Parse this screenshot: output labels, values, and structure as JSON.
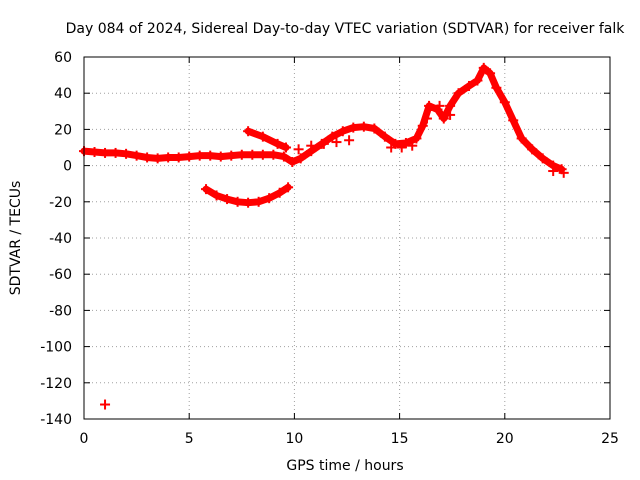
{
  "chart_data": {
    "type": "scatter",
    "title": "Day 084 of 2024, Sidereal Day-to-day VTEC variation (SDTVAR) for receiver falk",
    "xlabel": "GPS time / hours",
    "ylabel": "SDTVAR / TECUs",
    "xlim": [
      0,
      25
    ],
    "ylim": [
      -140,
      60
    ],
    "x_ticks": [
      0,
      5,
      10,
      15,
      20,
      25
    ],
    "y_ticks": [
      -140,
      -120,
      -100,
      -80,
      -60,
      -40,
      -20,
      0,
      20,
      40,
      60
    ],
    "grid": true,
    "colors": {
      "series": "#ff0000",
      "grid": "#a0a0a0",
      "axis": "#000000"
    },
    "series": [
      {
        "name": "main arc",
        "points": [
          [
            0.0,
            8
          ],
          [
            0.5,
            7.5
          ],
          [
            1.0,
            7
          ],
          [
            1.5,
            7
          ],
          [
            2.0,
            6.5
          ],
          [
            2.5,
            5.5
          ],
          [
            3.0,
            4.5
          ],
          [
            3.5,
            4
          ],
          [
            4.0,
            4.5
          ],
          [
            4.5,
            4.5
          ],
          [
            5.0,
            5
          ],
          [
            5.5,
            5.5
          ],
          [
            6.0,
            5.5
          ],
          [
            6.5,
            5
          ],
          [
            7.0,
            5.5
          ],
          [
            7.5,
            6
          ],
          [
            8.0,
            6
          ],
          [
            8.5,
            6
          ],
          [
            9.0,
            6
          ],
          [
            9.5,
            5
          ],
          [
            9.9,
            2
          ],
          [
            10.3,
            4
          ],
          [
            10.8,
            8
          ],
          [
            11.3,
            12
          ],
          [
            11.8,
            16
          ],
          [
            12.3,
            19
          ],
          [
            12.8,
            21
          ],
          [
            13.3,
            21.5
          ],
          [
            13.8,
            20.5
          ],
          [
            14.3,
            16
          ],
          [
            14.8,
            12
          ],
          [
            15.3,
            12.5
          ],
          [
            15.8,
            15
          ],
          [
            16.1,
            22
          ],
          [
            16.4,
            33
          ],
          [
            16.8,
            31
          ],
          [
            17.1,
            26
          ],
          [
            17.4,
            33
          ],
          [
            17.8,
            40
          ],
          [
            18.3,
            44
          ],
          [
            18.7,
            47
          ],
          [
            19.0,
            54
          ],
          [
            19.3,
            51
          ],
          [
            19.6,
            43
          ],
          [
            20.0,
            35
          ],
          [
            20.4,
            25
          ],
          [
            20.8,
            15
          ],
          [
            21.3,
            9
          ],
          [
            21.8,
            4
          ],
          [
            22.3,
            0
          ],
          [
            22.7,
            -2
          ]
        ]
      },
      {
        "name": "upper branch",
        "points": [
          [
            7.8,
            19
          ],
          [
            8.5,
            16
          ],
          [
            9.2,
            12
          ],
          [
            9.6,
            10
          ]
        ]
      },
      {
        "name": "lower arc",
        "points": [
          [
            5.8,
            -13
          ],
          [
            6.3,
            -16.5
          ],
          [
            6.8,
            -18.5
          ],
          [
            7.3,
            -20
          ],
          [
            7.8,
            -20.5
          ],
          [
            8.3,
            -20
          ],
          [
            8.8,
            -18
          ],
          [
            9.3,
            -15
          ],
          [
            9.7,
            -12
          ]
        ]
      },
      {
        "name": "secondary segments",
        "points": [
          [
            10.2,
            9
          ],
          [
            10.8,
            11
          ],
          [
            11.4,
            12
          ],
          [
            12.0,
            13
          ],
          [
            12.6,
            14
          ],
          [
            14.6,
            10
          ],
          [
            15.1,
            10
          ],
          [
            15.6,
            11
          ],
          [
            16.3,
            26
          ],
          [
            16.9,
            33
          ],
          [
            17.4,
            28
          ],
          [
            22.3,
            -3
          ],
          [
            22.8,
            -4
          ]
        ]
      },
      {
        "name": "outlier",
        "points": [
          [
            1.0,
            -132
          ]
        ]
      }
    ]
  }
}
